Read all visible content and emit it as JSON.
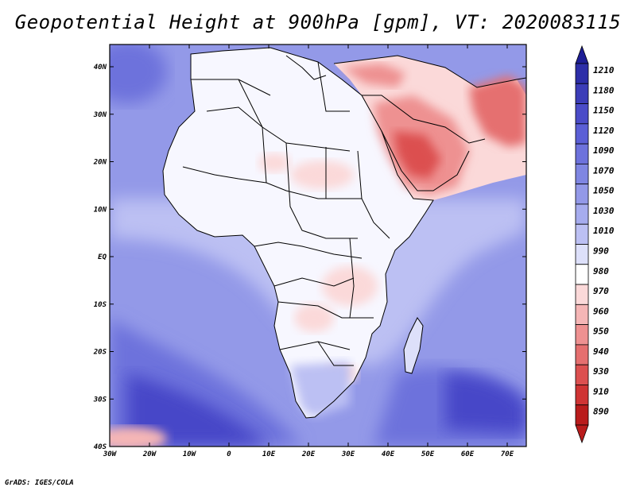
{
  "title": "Geopotential Height at 900hPa [gpm], VT: 2020083115",
  "footer": "GrADS: IGES/COLA",
  "map": {
    "lat_labels": [
      "40N",
      "30N",
      "20N",
      "10N",
      "EQ",
      "10S",
      "20S",
      "30S",
      "40S"
    ],
    "lon_labels": [
      "30W",
      "20W",
      "10W",
      "0",
      "10E",
      "20E",
      "30E",
      "40E",
      "50E",
      "60E",
      "70E"
    ]
  },
  "colorbar": {
    "levels": [
      "1210",
      "1180",
      "1150",
      "1120",
      "1090",
      "1070",
      "1050",
      "1030",
      "1010",
      "990",
      "980",
      "970",
      "960",
      "950",
      "940",
      "930",
      "910",
      "890"
    ],
    "colors": [
      "#2d2ea8",
      "#3c3db8",
      "#4b4cc8",
      "#5b5fd6",
      "#6d72dc",
      "#7f86e2",
      "#9399e8",
      "#a6acee",
      "#bcc0f3",
      "#dde0fa",
      "#ffffff",
      "#fbd9d9",
      "#f5b6b6",
      "#ee9191",
      "#e56f6f",
      "#dc5050",
      "#cf3434",
      "#b91c1c"
    ],
    "shades": {
      "ocean_deep": "#4646c8",
      "ocean_mid": "#6d72dc",
      "ocean_light": "#a6acee",
      "land_white": "#f7f7ff",
      "hot": "#e56f6f",
      "hot_light": "#f5b6b6"
    }
  }
}
